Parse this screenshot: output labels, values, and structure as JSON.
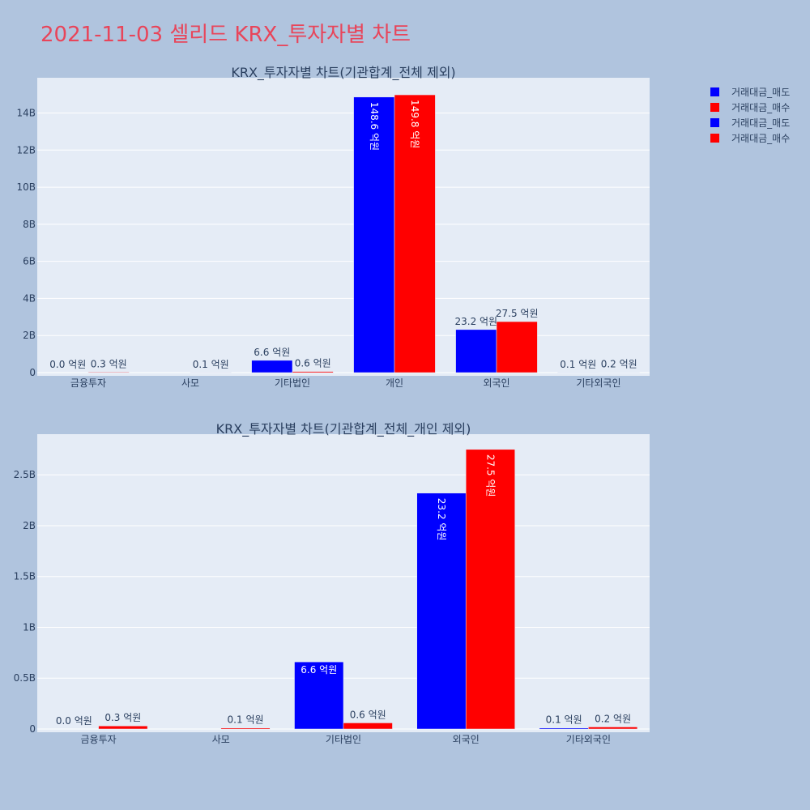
{
  "title": "2021-11-03 셀리드 KRX_투자자별 차트",
  "colors": {
    "sell": "#0000ff",
    "buy": "#ff0000",
    "title": "#e8455a",
    "plot_bg": "#e5ecf6",
    "page_bg": "#b0c4de"
  },
  "legend": [
    "거래대금_매도",
    "거래대금_매수",
    "거래대금_매도",
    "거래대금_매수"
  ],
  "chart_data": [
    {
      "type": "bar",
      "title": "KRX_투자자별 차트(기관합계_전체 제외)",
      "categories": [
        "금융투자",
        "사모",
        "기타법인",
        "개인",
        "외국인",
        "기타외국인"
      ],
      "ylim": [
        0,
        15900000000
      ],
      "yticks": [
        0,
        2000000000,
        4000000000,
        6000000000,
        8000000000,
        10000000000,
        12000000000,
        14000000000
      ],
      "ytick_labels": [
        "0",
        "2B",
        "4B",
        "6B",
        "8B",
        "10B",
        "12B",
        "14B"
      ],
      "series": [
        {
          "name": "거래대금_매도",
          "color": "#0000ff",
          "values": [
            0,
            0,
            660000000,
            14860000000,
            2320000000,
            10000000
          ],
          "labels": [
            "0.0 억원",
            "",
            "6.6 억원",
            "148.6 억원",
            "23.2 억원",
            "0.1 억원"
          ]
        },
        {
          "name": "거래대금_매수",
          "color": "#ff0000",
          "values": [
            30000000,
            10000000,
            60000000,
            14980000000,
            2750000000,
            20000000
          ],
          "labels": [
            "0.3 억원",
            "0.1 억원",
            "0.6 억원",
            "149.8 억원",
            "27.5 억원",
            "0.2 억원"
          ]
        }
      ],
      "grid": true,
      "legend_position": "top-right"
    },
    {
      "type": "bar",
      "title": "KRX_투자자별 차트(기관합계_전체_개인 제외)",
      "categories": [
        "금융투자",
        "사모",
        "기타법인",
        "외국인",
        "기타외국인"
      ],
      "ylim": [
        0,
        2900000000
      ],
      "yticks": [
        0,
        500000000,
        1000000000,
        1500000000,
        2000000000,
        2500000000
      ],
      "ytick_labels": [
        "0",
        "0.5B",
        "1B",
        "1.5B",
        "2B",
        "2.5B"
      ],
      "series": [
        {
          "name": "거래대금_매도",
          "color": "#0000ff",
          "values": [
            0,
            0,
            660000000,
            2320000000,
            10000000
          ],
          "labels": [
            "0.0 억원",
            "",
            "6.6 억원",
            "23.2 억원",
            "0.1 억원"
          ]
        },
        {
          "name": "거래대금_매수",
          "color": "#ff0000",
          "values": [
            30000000,
            10000000,
            60000000,
            2750000000,
            20000000
          ],
          "labels": [
            "0.3 억원",
            "0.1 억원",
            "0.6 억원",
            "27.5 억원",
            "0.2 억원"
          ]
        }
      ],
      "grid": true
    }
  ]
}
